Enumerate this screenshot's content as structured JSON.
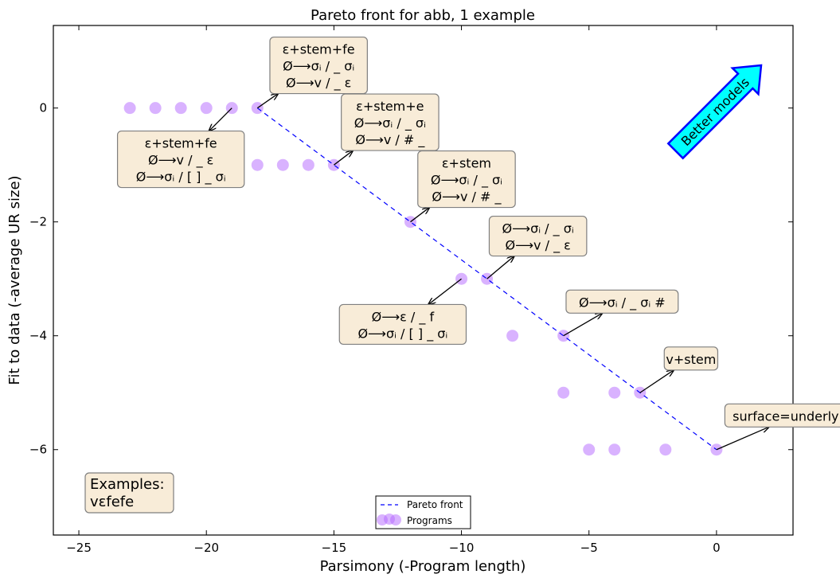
{
  "chart_data": {
    "type": "scatter",
    "title": "Pareto front for abb, 1 example",
    "xlabel": "Parsimony (-Program length)",
    "ylabel": "Fit to data (-average UR size)",
    "xlim": [
      -26,
      3
    ],
    "ylim": [
      -7.5,
      1.45
    ],
    "xticks": [
      -25,
      -20,
      -15,
      -10,
      -5,
      0
    ],
    "yticks": [
      0,
      -2,
      -4,
      -6
    ],
    "xtick_labels": [
      "−25",
      "−20",
      "−15",
      "−10",
      "−5",
      "0"
    ],
    "ytick_labels": [
      "0",
      "−2",
      "−4",
      "−6"
    ],
    "grid": false,
    "colors": {
      "programs": "#b366ff",
      "pareto": "#0000ff",
      "box_fill": "#f8ecd8",
      "arrow_fill": "#00ffff",
      "arrow_edge": "#0000ff"
    },
    "series": [
      {
        "name": "Programs",
        "kind": "scatter",
        "points": [
          [
            -23,
            0
          ],
          [
            -22,
            0
          ],
          [
            -21,
            0
          ],
          [
            -20,
            0
          ],
          [
            -19,
            0
          ],
          [
            -18,
            0
          ],
          [
            -18,
            -1
          ],
          [
            -17,
            -1
          ],
          [
            -16,
            -1
          ],
          [
            -15,
            -1
          ],
          [
            -12,
            -2
          ],
          [
            -10,
            -3
          ],
          [
            -9,
            -3
          ],
          [
            -8,
            -4
          ],
          [
            -6,
            -4
          ],
          [
            -6,
            -5
          ],
          [
            -4,
            -5
          ],
          [
            -3,
            -5
          ],
          [
            -5,
            -6
          ],
          [
            -4,
            -6
          ],
          [
            -2,
            -6
          ],
          [
            0,
            -6
          ]
        ]
      },
      {
        "name": "Pareto front",
        "kind": "line",
        "style": "dashed",
        "points": [
          [
            -18,
            0
          ],
          [
            -15,
            -1
          ],
          [
            -12,
            -2
          ],
          [
            -9,
            -3
          ],
          [
            -6,
            -4
          ],
          [
            -3,
            -5
          ],
          [
            0,
            -6
          ]
        ]
      }
    ],
    "annotations": [
      {
        "lines": [
          "ε+stem+fe",
          "Ø⟶σᵢ /  _ σᵢ",
          "Ø⟶v /  _ ε"
        ],
        "point": [
          -18,
          0
        ],
        "text_at": [
          -15.6,
          0.75
        ]
      },
      {
        "lines": [
          "ε+stem+fe",
          "Ø⟶v /  _ ε",
          "Ø⟶σᵢ / [  ] _ σᵢ"
        ],
        "point": [
          -19,
          0
        ],
        "text_at": [
          -21.0,
          -0.9
        ]
      },
      {
        "lines": [
          "ε+stem+e",
          "Ø⟶σᵢ /  _ σᵢ",
          "Ø⟶v / # _"
        ],
        "point": [
          -15,
          -1
        ],
        "text_at": [
          -12.8,
          -0.25
        ]
      },
      {
        "lines": [
          "ε+stem",
          "Ø⟶σᵢ /  _ σᵢ",
          "Ø⟶v / # _"
        ],
        "point": [
          -12,
          -2
        ],
        "text_at": [
          -9.8,
          -1.25
        ]
      },
      {
        "lines": [
          "Ø⟶σᵢ /  _ σᵢ",
          "Ø⟶v /  _ ε"
        ],
        "point": [
          -9,
          -3
        ],
        "text_at": [
          -7.0,
          -2.25
        ]
      },
      {
        "lines": [
          "Ø⟶ε /  _ f",
          "Ø⟶σᵢ / [  ] _ σᵢ"
        ],
        "point": [
          -10,
          -3
        ],
        "text_at": [
          -12.3,
          -3.8
        ]
      },
      {
        "lines": [
          "Ø⟶σᵢ /  _ σᵢ #"
        ],
        "point": [
          -6,
          -4
        ],
        "text_at": [
          -3.7,
          -3.4
        ]
      },
      {
        "lines": [
          "v+stem"
        ],
        "point": [
          -3,
          -5
        ],
        "text_at": [
          -1.0,
          -4.4
        ]
      },
      {
        "lines": [
          "surface=underlying"
        ],
        "point": [
          0,
          -6
        ],
        "text_at": [
          3.1,
          -5.4
        ]
      }
    ],
    "examples_box": {
      "lines": [
        "Examples:",
        "vεfefe"
      ]
    },
    "better_models": {
      "label": "Better models"
    },
    "legend": {
      "placement": "lower-center",
      "entries": [
        "Pareto front",
        "Programs"
      ]
    }
  }
}
